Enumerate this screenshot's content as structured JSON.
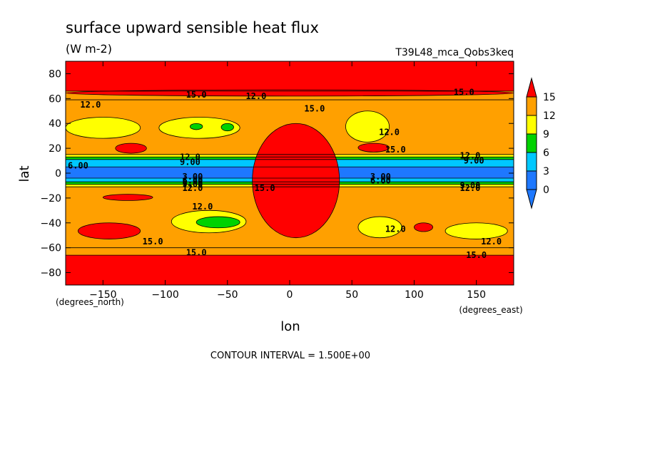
{
  "chart_data": {
    "type": "heatmap",
    "title": "surface upward sensible heat flux",
    "units": "(W m-2)",
    "run_label": "T39L48_mca_Qobs3keq",
    "xlabel": "lon",
    "ylabel": "lat",
    "x_unit_label": "(degrees_east)",
    "y_unit_label": "(degrees_north)",
    "xlim": [
      -180,
      180
    ],
    "ylim": [
      -90,
      90
    ],
    "x_ticks": [
      -150,
      -100,
      -50,
      0,
      50,
      100,
      150
    ],
    "y_ticks": [
      -80,
      -60,
      -40,
      -20,
      0,
      20,
      40,
      60,
      80
    ],
    "contour_interval_text": "CONTOUR INTERVAL = 1.500E+00",
    "colorbar": {
      "levels": [
        0,
        3,
        6,
        9,
        12,
        15
      ],
      "colors": [
        "#1e78ff",
        "#00c8ff",
        "#00d200",
        "#ffff00",
        "#ffa000",
        "#ff0000"
      ]
    },
    "zonal_bands": [
      {
        "lat_from": 66,
        "lat_to": 90,
        "value_class": "gt15"
      },
      {
        "lat_from": 59,
        "lat_to": 66,
        "value_class": "12-15"
      },
      {
        "lat_from": 15,
        "lat_to": 59,
        "value_class": "12-15"
      },
      {
        "lat_from": 13,
        "lat_to": 15,
        "value_class": "9-12"
      },
      {
        "lat_from": 11,
        "lat_to": 13,
        "value_class": "6-9"
      },
      {
        "lat_from": 5,
        "lat_to": 11,
        "value_class": "3-6"
      },
      {
        "lat_from": -4,
        "lat_to": 5,
        "value_class": "0-3"
      },
      {
        "lat_from": -7,
        "lat_to": -4,
        "value_class": "3-6"
      },
      {
        "lat_from": -9,
        "lat_to": -7,
        "value_class": "6-9"
      },
      {
        "lat_from": -11,
        "lat_to": -9,
        "value_class": "9-12"
      },
      {
        "lat_from": -60,
        "lat_to": -11,
        "value_class": "12-15"
      },
      {
        "lat_from": -66,
        "lat_to": -60,
        "value_class": "12-15"
      },
      {
        "lat_from": -90,
        "lat_to": -66,
        "value_class": "gt15"
      }
    ],
    "regions": [
      {
        "value_class": "gt15",
        "lon": [
          -180,
          180
        ],
        "lat": [
          62,
          67
        ]
      },
      {
        "value_class": "gt15",
        "lon": [
          -30,
          40
        ],
        "lat": [
          -52,
          40
        ]
      },
      {
        "value_class": "gt15",
        "lon": [
          -140,
          -115
        ],
        "lat": [
          16,
          24
        ]
      },
      {
        "value_class": "gt15",
        "lon": [
          -150,
          -110
        ],
        "lat": [
          -22,
          -17
        ]
      },
      {
        "value_class": "gt15",
        "lon": [
          -170,
          -120
        ],
        "lat": [
          -53,
          -40
        ]
      },
      {
        "value_class": "gt15",
        "lon": [
          100,
          115
        ],
        "lat": [
          -47,
          -40
        ]
      },
      {
        "value_class": "gt15",
        "lon": [
          55,
          80
        ],
        "lat": [
          17,
          24
        ]
      },
      {
        "value_class": "9-12",
        "lon": [
          -180,
          -120
        ],
        "lat": [
          28,
          45
        ]
      },
      {
        "value_class": "9-12",
        "lon": [
          -105,
          -40
        ],
        "lat": [
          28,
          45
        ]
      },
      {
        "value_class": "9-12",
        "lon": [
          45,
          80
        ],
        "lat": [
          25,
          50
        ]
      },
      {
        "value_class": "9-12",
        "lon": [
          -95,
          -35
        ],
        "lat": [
          -48,
          -30
        ]
      },
      {
        "value_class": "9-12",
        "lon": [
          55,
          90
        ],
        "lat": [
          -52,
          -35
        ]
      },
      {
        "value_class": "9-12",
        "lon": [
          125,
          175
        ],
        "lat": [
          -53,
          -40
        ]
      },
      {
        "value_class": "6-9",
        "lon": [
          -75,
          -40
        ],
        "lat": [
          -44,
          -35
        ]
      },
      {
        "value_class": "6-9",
        "lon": [
          -80,
          -70
        ],
        "lat": [
          35,
          40
        ]
      },
      {
        "value_class": "6-9",
        "lon": [
          -55,
          -45
        ],
        "lat": [
          34,
          40
        ]
      }
    ],
    "contour_labels": [
      {
        "text": "12.0",
        "lon": -160,
        "lat": 55
      },
      {
        "text": "15.0",
        "lon": -75,
        "lat": 63
      },
      {
        "text": "12.0",
        "lon": -27,
        "lat": 62
      },
      {
        "text": "15.0",
        "lon": 20,
        "lat": 52
      },
      {
        "text": "12.0",
        "lon": 80,
        "lat": 33
      },
      {
        "text": "15.0",
        "lon": 85,
        "lat": 19
      },
      {
        "text": "15.0",
        "lon": 140,
        "lat": 65
      },
      {
        "text": "12.0",
        "lon": 145,
        "lat": 14
      },
      {
        "text": "9.00",
        "lon": 148,
        "lat": 10
      },
      {
        "text": "6.00",
        "lon": -170,
        "lat": 6
      },
      {
        "text": "12.0",
        "lon": -80,
        "lat": 13
      },
      {
        "text": "9.00",
        "lon": -80,
        "lat": 9
      },
      {
        "text": "3.00",
        "lon": -78,
        "lat": -3
      },
      {
        "text": "6.00",
        "lon": -78,
        "lat": -6
      },
      {
        "text": "9.00",
        "lon": -78,
        "lat": -9
      },
      {
        "text": "12.0",
        "lon": -78,
        "lat": -12
      },
      {
        "text": "3.00",
        "lon": 73,
        "lat": -3
      },
      {
        "text": "6.00",
        "lon": 73,
        "lat": -6
      },
      {
        "text": "9.00",
        "lon": 145,
        "lat": -10
      },
      {
        "text": "12.0",
        "lon": 145,
        "lat": -12
      },
      {
        "text": "15.0",
        "lon": -20,
        "lat": -12
      },
      {
        "text": "12.0",
        "lon": -70,
        "lat": -27
      },
      {
        "text": "15.0",
        "lon": -110,
        "lat": -55
      },
      {
        "text": "15.0",
        "lon": -75,
        "lat": -64
      },
      {
        "text": "12.0",
        "lon": 85,
        "lat": -45
      },
      {
        "text": "12.0",
        "lon": 162,
        "lat": -55
      },
      {
        "text": "15.0",
        "lon": 150,
        "lat": -66
      }
    ]
  }
}
